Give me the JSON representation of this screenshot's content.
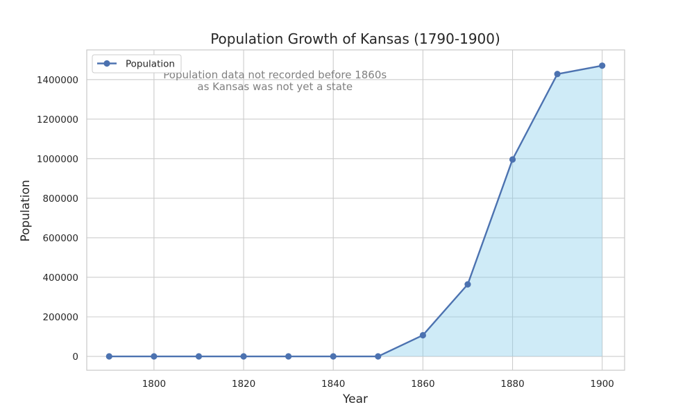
{
  "chart_data": {
    "type": "area",
    "title": "Population Growth of Kansas (1790-1900)",
    "xlabel": "Year",
    "ylabel": "Population",
    "x": [
      1790,
      1800,
      1810,
      1820,
      1830,
      1840,
      1850,
      1860,
      1870,
      1880,
      1890,
      1900
    ],
    "series": [
      {
        "name": "Population",
        "values": [
          0,
          0,
          0,
          0,
          0,
          0,
          0,
          107206,
          364399,
          996096,
          1428108,
          1470495
        ],
        "line_color": "#4c72b0",
        "fill_color": "#87ceeb"
      }
    ],
    "xlim": [
      1785,
      1905
    ],
    "ylim": [
      -70000,
      1550000
    ],
    "xticks": [
      1800,
      1820,
      1840,
      1860,
      1880,
      1900
    ],
    "yticks": [
      0,
      200000,
      400000,
      600000,
      800000,
      1000000,
      1200000,
      1400000
    ],
    "grid": true,
    "legend_position": "upper-left",
    "annotation": {
      "lines": [
        "Population data not recorded before 1860s",
        "as Kansas was not yet a state"
      ],
      "x": 1827,
      "y": 1400000
    }
  }
}
